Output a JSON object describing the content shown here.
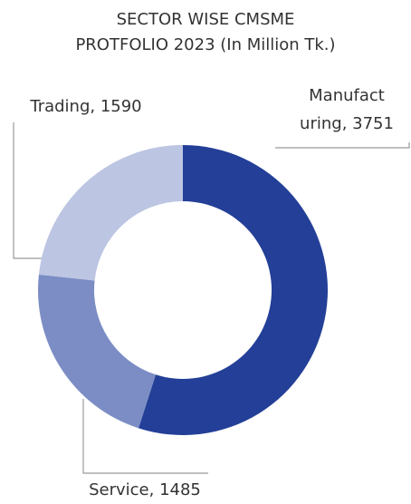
{
  "chart_data": {
    "type": "donut",
    "title": [
      "SECTOR WISE CMSME",
      "PROTFOLIO 2023 (In Million Tk.)"
    ],
    "categories": [
      "Manufacturing",
      "Service",
      "Trading"
    ],
    "values": [
      3751,
      1485,
      1590
    ],
    "data_labels": [
      [
        "Manufact",
        "uring, 3751"
      ],
      [
        "Service, 1485"
      ],
      [
        "Trading, 1590"
      ]
    ],
    "colors": [
      "#233f97",
      "#7b8dc4",
      "#bcc5e2"
    ]
  }
}
